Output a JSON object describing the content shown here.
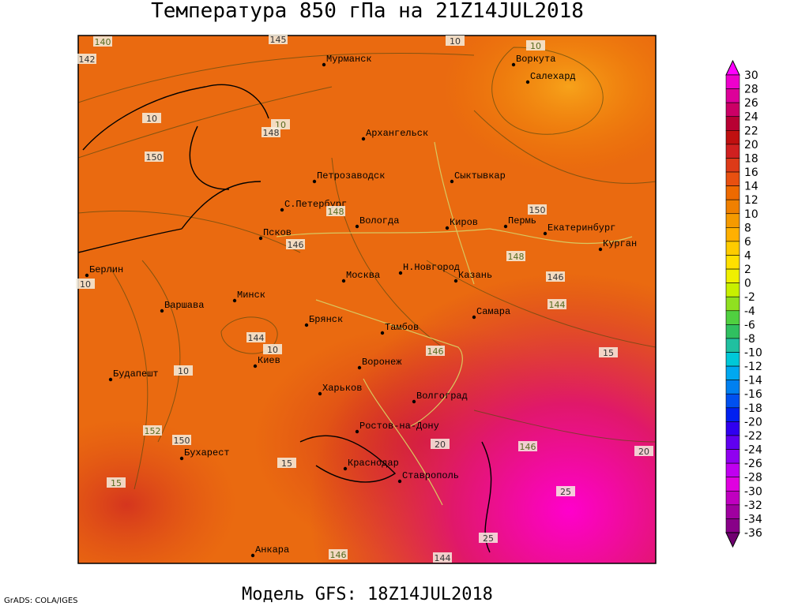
{
  "title": "Температура 850 гПа на 21Z14JUL2018",
  "footer": {
    "credit": "GrADS: COLA/IGES",
    "model": "Модель GFS: 18Z14JUL2018"
  },
  "cities": [
    "Мурманск",
    "Воркута",
    "Салехард",
    "Архангельск",
    "Петрозаводск",
    "Сыктывкар",
    "С.Петербург",
    "Вологда",
    "Киров",
    "Пермь",
    "Екатеринбург",
    "Курган",
    "Псков",
    "Н.Новгород",
    "Казань",
    "Москва",
    "Берлин",
    "Варшава",
    "Минск",
    "Самара",
    "Брянск",
    "Тамбов",
    "Киев",
    "Воронеж",
    "Будапешт",
    "Харьков",
    "Волгоград",
    "Ростов-на-Дону",
    "Бухарест",
    "Краснодар",
    "Ставрополь",
    "Анкара"
  ],
  "contour_labels": [
    "140",
    "145",
    "10",
    "10",
    "142",
    "10",
    "10",
    "148",
    "150",
    "148",
    "150",
    "146",
    "148",
    "146",
    "10",
    "144",
    "144",
    "10",
    "146",
    "15",
    "10",
    "152",
    "150",
    "20",
    "146",
    "20",
    "15",
    "15",
    "25",
    "25",
    "146",
    "144"
  ],
  "colorbar": {
    "levels": [
      30,
      28,
      26,
      24,
      22,
      20,
      18,
      16,
      14,
      12,
      10,
      8,
      6,
      4,
      2,
      0,
      -2,
      -4,
      -6,
      -8,
      -10,
      -12,
      -14,
      -16,
      -18,
      -20,
      -22,
      -24,
      -26,
      -28,
      -30,
      -32,
      -34,
      -36
    ],
    "colors": [
      "#ff00ff",
      "#ee00cc",
      "#dd0099",
      "#cc0066",
      "#b80033",
      "#c01010",
      "#d02020",
      "#dd3a18",
      "#e85010",
      "#ee6a00",
      "#f08000",
      "#f59a00",
      "#ffb000",
      "#ffcc00",
      "#ffe000",
      "#f0f000",
      "#c8f000",
      "#90e020",
      "#50d040",
      "#30c060",
      "#20c0a0",
      "#00c8d8",
      "#00a8f0",
      "#0080f0",
      "#0050f0",
      "#0020f0",
      "#3000f0",
      "#6000f0",
      "#9000f0",
      "#c000f0",
      "#e000e0",
      "#c000c0",
      "#a000a0",
      "#880088",
      "#700070"
    ]
  }
}
